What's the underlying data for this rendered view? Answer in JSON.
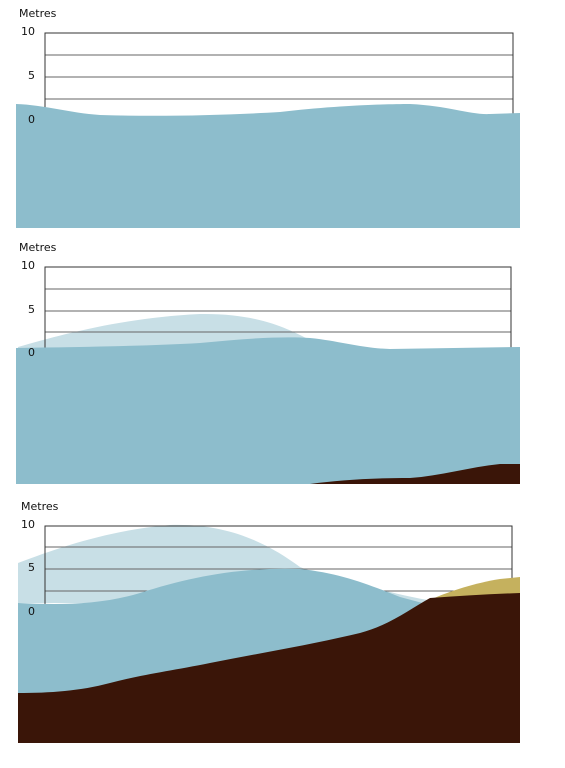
{
  "panels": [
    {
      "id": "panel-1",
      "unit_label": "Metres",
      "ticks": [
        "10",
        "5",
        "0"
      ]
    },
    {
      "id": "panel-2",
      "unit_label": "Metres",
      "ticks": [
        "10",
        "5",
        "0"
      ]
    },
    {
      "id": "panel-3",
      "unit_label": "Metres",
      "ticks": [
        "10",
        "5",
        "0"
      ]
    }
  ],
  "colors": {
    "sea": "#8dbdcc",
    "wave_pale": "#c8dfe6",
    "seabed": "#3a1508",
    "sand": "#c5b15e",
    "grid": "#666666",
    "frame": "#333333"
  }
}
